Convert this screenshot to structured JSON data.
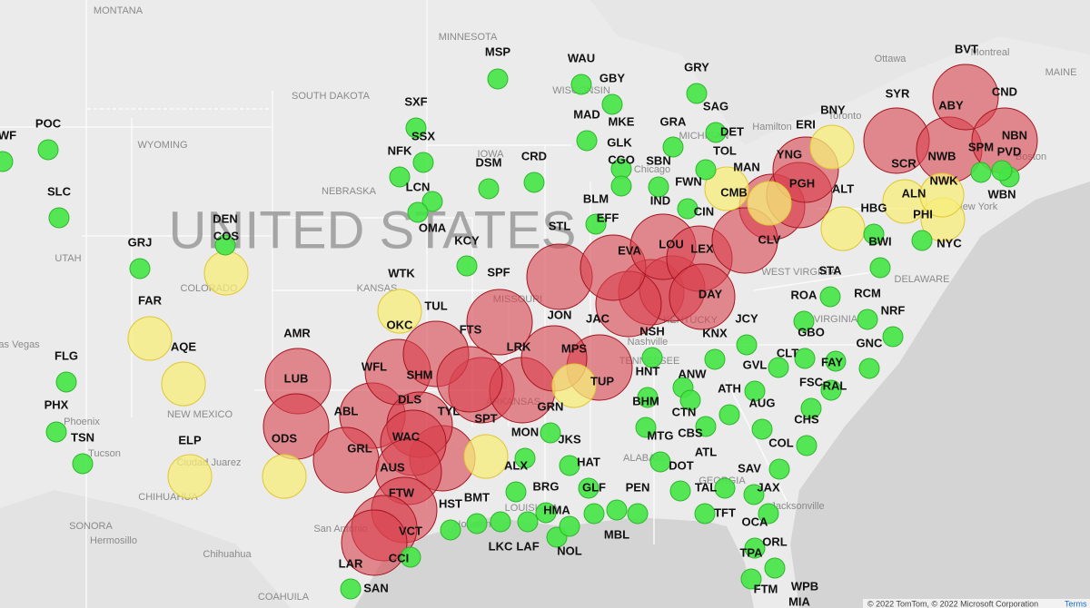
{
  "watermark": "UNITED STATES",
  "attribution": "© 2022 TomTom, © 2022 Microsoft Corporation",
  "terms": "Terms",
  "marker_colors": {
    "green": "#45e645",
    "yellow": "#f7ee7a",
    "red": "#d9434f"
  },
  "region_labels": [
    "MONTANA",
    "MINNESOTA",
    "SOUTH DAKOTA",
    "WYOMING",
    "NEBRASKA",
    "KANSAS",
    "COLORADO",
    "UTAH",
    "NEW MEXICO",
    "MISSOURI",
    "WISCONSIN",
    "MICHIGAN",
    "IOWA",
    "WEST VIRGINIA",
    "VIRGINIA",
    "KENTUCKY",
    "TENNESSEE",
    "ARKANSAS",
    "ALABAMA",
    "GEORGIA",
    "LOUISIANA",
    "Ottawa",
    "MAINE",
    "Montreal",
    "Hamilton",
    "Toronto",
    "Boston",
    "New York",
    "Phoenix",
    "Tucson",
    "Ciudad Juarez",
    "Hermosillo",
    "Chihuahua",
    "SONORA",
    "CHIHUAHUA",
    "COAHUILA",
    "San Antonio",
    "Houston",
    "Jacksonville",
    "Nashville",
    "Chicago",
    "Las Vegas",
    "DELAWARE"
  ],
  "markers": [
    "WF",
    "POC",
    "SLC",
    "GRJ",
    "FLG",
    "PHX",
    "TSN",
    "DEN",
    "COS",
    "FAR",
    "AQE",
    "ELP",
    "AMR",
    "LUB",
    "ODS",
    "ABL",
    "WFL",
    "SHM",
    "OKC",
    "TUL",
    "WTK",
    "FTS",
    "LRK",
    "MPS",
    "TUP",
    "DLS",
    "TYL",
    "SPT",
    "WAC",
    "GRL",
    "AUS",
    "FTW",
    "VCT",
    "LAR",
    "HST",
    "BMT",
    "LKC",
    "LAF",
    "NOL",
    "HMA",
    "BRG",
    "ALX",
    "GRN",
    "MON",
    "JKS",
    "HAT",
    "GLF",
    "PEN",
    "MBL",
    "SAN",
    "CCI",
    "JON",
    "JAC",
    "EVA",
    "STL",
    "SPF",
    "KCY",
    "LOU",
    "LEX",
    "DAY",
    "CIN",
    "IND",
    "FWN",
    "CLV",
    "MAN",
    "TOL",
    "CMB",
    "PGH",
    "YNG",
    "ERI",
    "ALT",
    "BNY",
    "STA",
    "ROA",
    "RCM",
    "NRF",
    "GNC",
    "BWI",
    "HBG",
    "PHI",
    "NYC",
    "ALN",
    "NWK",
    "SCR",
    "NWB",
    "ABY",
    "NBN",
    "CND",
    "BVT",
    "SYR",
    "SPM",
    "PVD",
    "WBN",
    "DET",
    "SAG",
    "GRA",
    "GRY",
    "MAD",
    "MKE",
    "GBY",
    "WAU",
    "MSP",
    "GLK",
    "CGO",
    "SBN",
    "BLM",
    "EFF",
    "DSM",
    "CRD",
    "SXF",
    "SSX",
    "NFK",
    "LCN",
    "OMA",
    "NSH",
    "KNX",
    "JCY",
    "HNT",
    "ANW",
    "BHM",
    "CTN",
    "MTG",
    "CBS",
    "ATL",
    "DOT",
    "TAL",
    "TFT",
    "ATH",
    "GVL",
    "AUG",
    "CLT",
    "GBO",
    "FAY",
    "FSC",
    "RAL",
    "CHS",
    "COL",
    "SAV",
    "JAX",
    "OCA",
    "ORL",
    "TPA",
    "FTM",
    "WPB",
    "MIA"
  ]
}
